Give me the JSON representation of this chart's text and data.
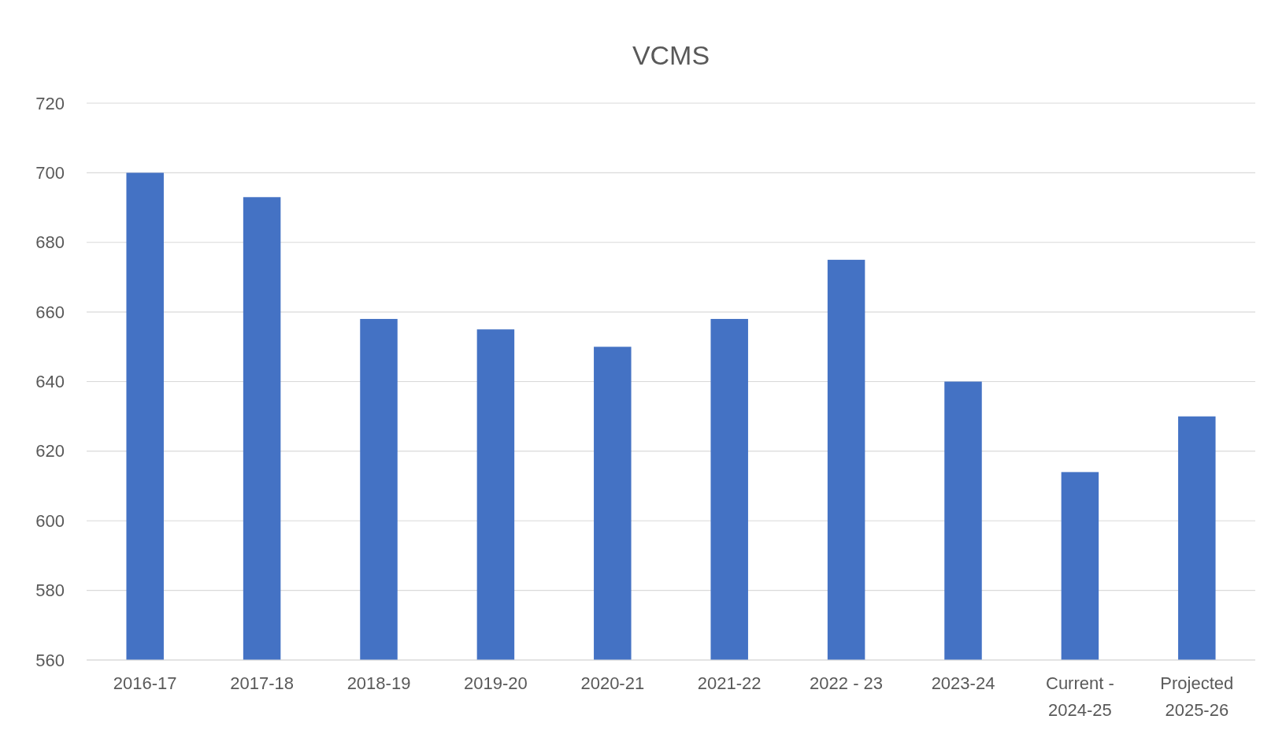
{
  "chart_data": {
    "type": "bar",
    "title": "VCMS",
    "categories": [
      "2016-17",
      "2017-18",
      "2018-19",
      "2019-20",
      "2020-21",
      "2021-22",
      "2022 - 23",
      "2023-24",
      "Current - 2024-25",
      "Projected 2025-26"
    ],
    "values": [
      700,
      693,
      658,
      655,
      650,
      658,
      675,
      640,
      614,
      630
    ],
    "color": "#4472c4",
    "ylim": [
      560,
      720
    ],
    "yticks": [
      560,
      580,
      600,
      620,
      640,
      660,
      680,
      700,
      720
    ],
    "grid": "y"
  }
}
